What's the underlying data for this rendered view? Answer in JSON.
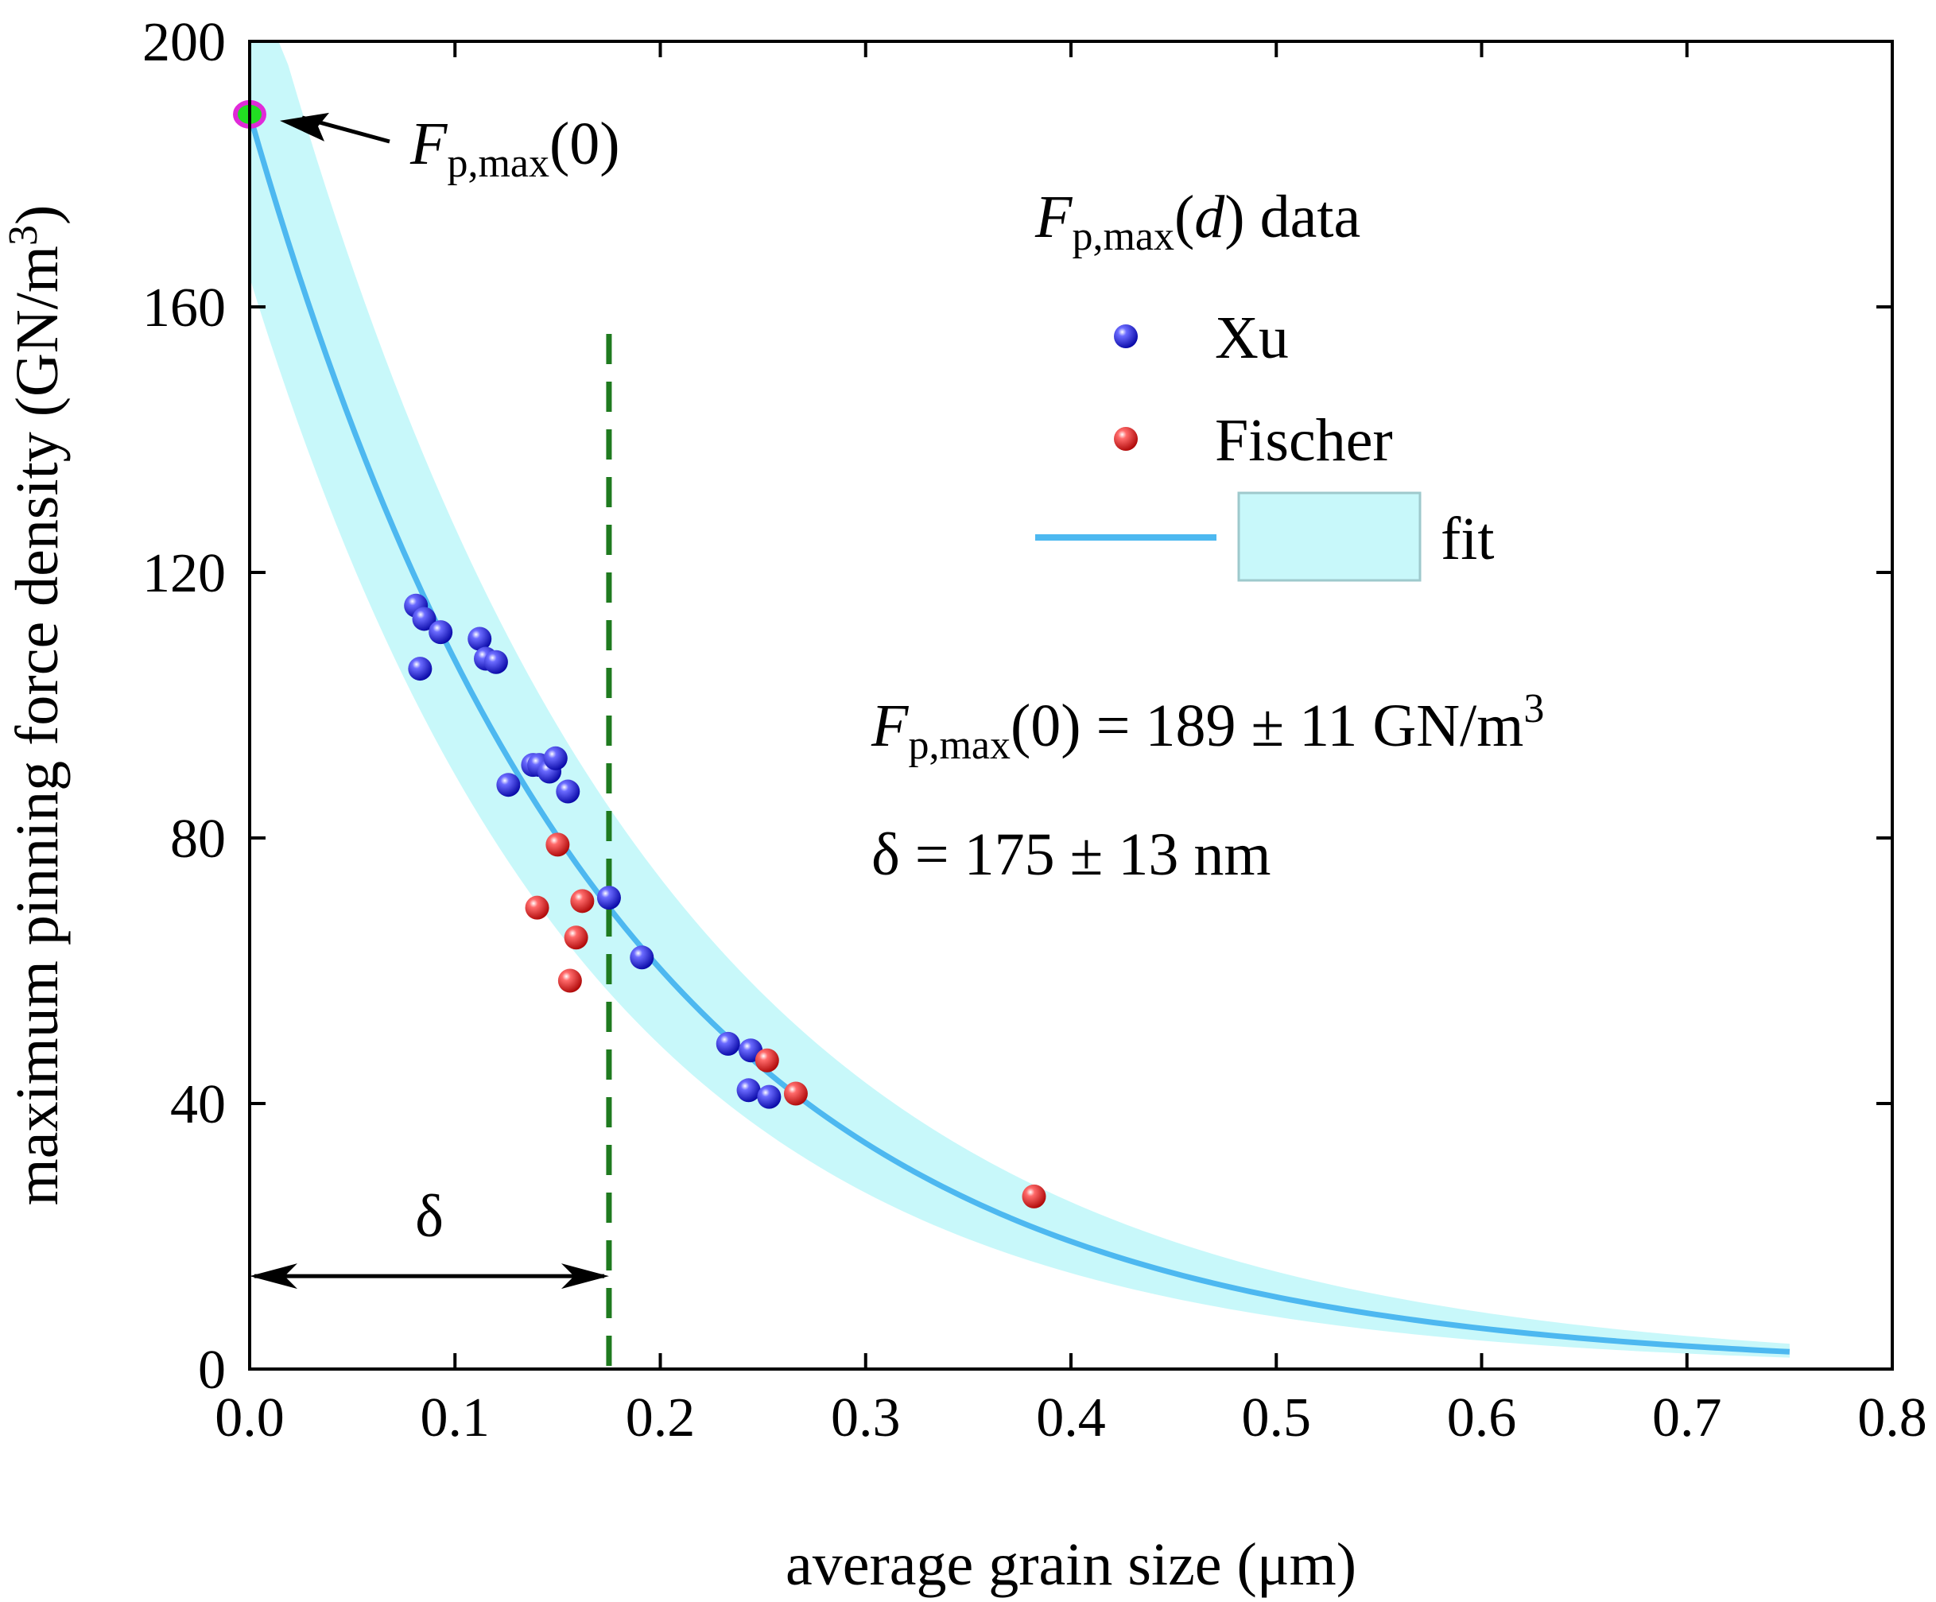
{
  "chart_data": {
    "type": "scatter",
    "xlabel": "average grain size (μm)",
    "ylabel": "maximum pinning force density (GN/m",
    "ylabel_sup": "3",
    "ylabel_close": ")",
    "xlim": [
      0.0,
      0.8
    ],
    "ylim": [
      0,
      200
    ],
    "x_ticks": [
      0.0,
      0.1,
      0.2,
      0.3,
      0.4,
      0.5,
      0.6,
      0.7,
      0.8
    ],
    "x_tick_labels": [
      "0.0",
      "0.1",
      "0.2",
      "0.3",
      "0.4",
      "0.5",
      "0.6",
      "0.7",
      "0.8"
    ],
    "y_ticks": [
      0,
      40,
      80,
      120,
      160,
      200
    ],
    "y_tick_labels": [
      "0",
      "40",
      "80",
      "120",
      "160",
      "200"
    ],
    "series": [
      {
        "name": "Xu",
        "color": "#1a1adc",
        "points": [
          [
            0.081,
            115
          ],
          [
            0.085,
            113
          ],
          [
            0.093,
            111
          ],
          [
            0.083,
            105.5
          ],
          [
            0.112,
            110
          ],
          [
            0.115,
            107
          ],
          [
            0.12,
            106.5
          ],
          [
            0.126,
            88
          ],
          [
            0.138,
            91
          ],
          [
            0.141,
            91
          ],
          [
            0.146,
            90
          ],
          [
            0.149,
            92
          ],
          [
            0.155,
            87
          ],
          [
            0.175,
            71
          ],
          [
            0.191,
            62
          ],
          [
            0.233,
            49
          ],
          [
            0.244,
            48
          ],
          [
            0.243,
            42
          ],
          [
            0.253,
            41
          ]
        ]
      },
      {
        "name": "Fischer",
        "color": "#e01a1a",
        "points": [
          [
            0.15,
            79
          ],
          [
            0.14,
            69.5
          ],
          [
            0.162,
            70.5
          ],
          [
            0.159,
            65
          ],
          [
            0.156,
            58.5
          ],
          [
            0.252,
            46.5
          ],
          [
            0.266,
            41.5
          ],
          [
            0.382,
            26
          ]
        ]
      }
    ],
    "fit": {
      "name": "fit",
      "model": "exponential",
      "amplitude": 189,
      "amplitude_err": 11,
      "decay_um": 0.175,
      "decay_err_um": 0.013,
      "x_range": [
        0.0,
        0.75
      ],
      "line_color": "#4db8f0",
      "band_color": "#c8f8fa"
    },
    "highlight_point": {
      "x": 0.0,
      "y": 189,
      "label": "F",
      "label_sub": "p,max",
      "label_tail": "(0)"
    },
    "delta_marker": {
      "x": 0.175,
      "y_arrow": 14,
      "label": "δ"
    },
    "legend": {
      "title_F": "F",
      "title_sub": "p,max",
      "title_open": "(",
      "title_d": "d",
      "title_close": ") data",
      "items": [
        "Xu",
        "Fischer",
        "fit"
      ],
      "position": "upper right"
    },
    "annotation": {
      "line1_F": "F",
      "line1_sub": "p,max",
      "line1_rest": "(0) = 189 ± 11 GN/m",
      "line1_sup": "3",
      "line2": "δ = 175 ± 13 nm"
    }
  }
}
